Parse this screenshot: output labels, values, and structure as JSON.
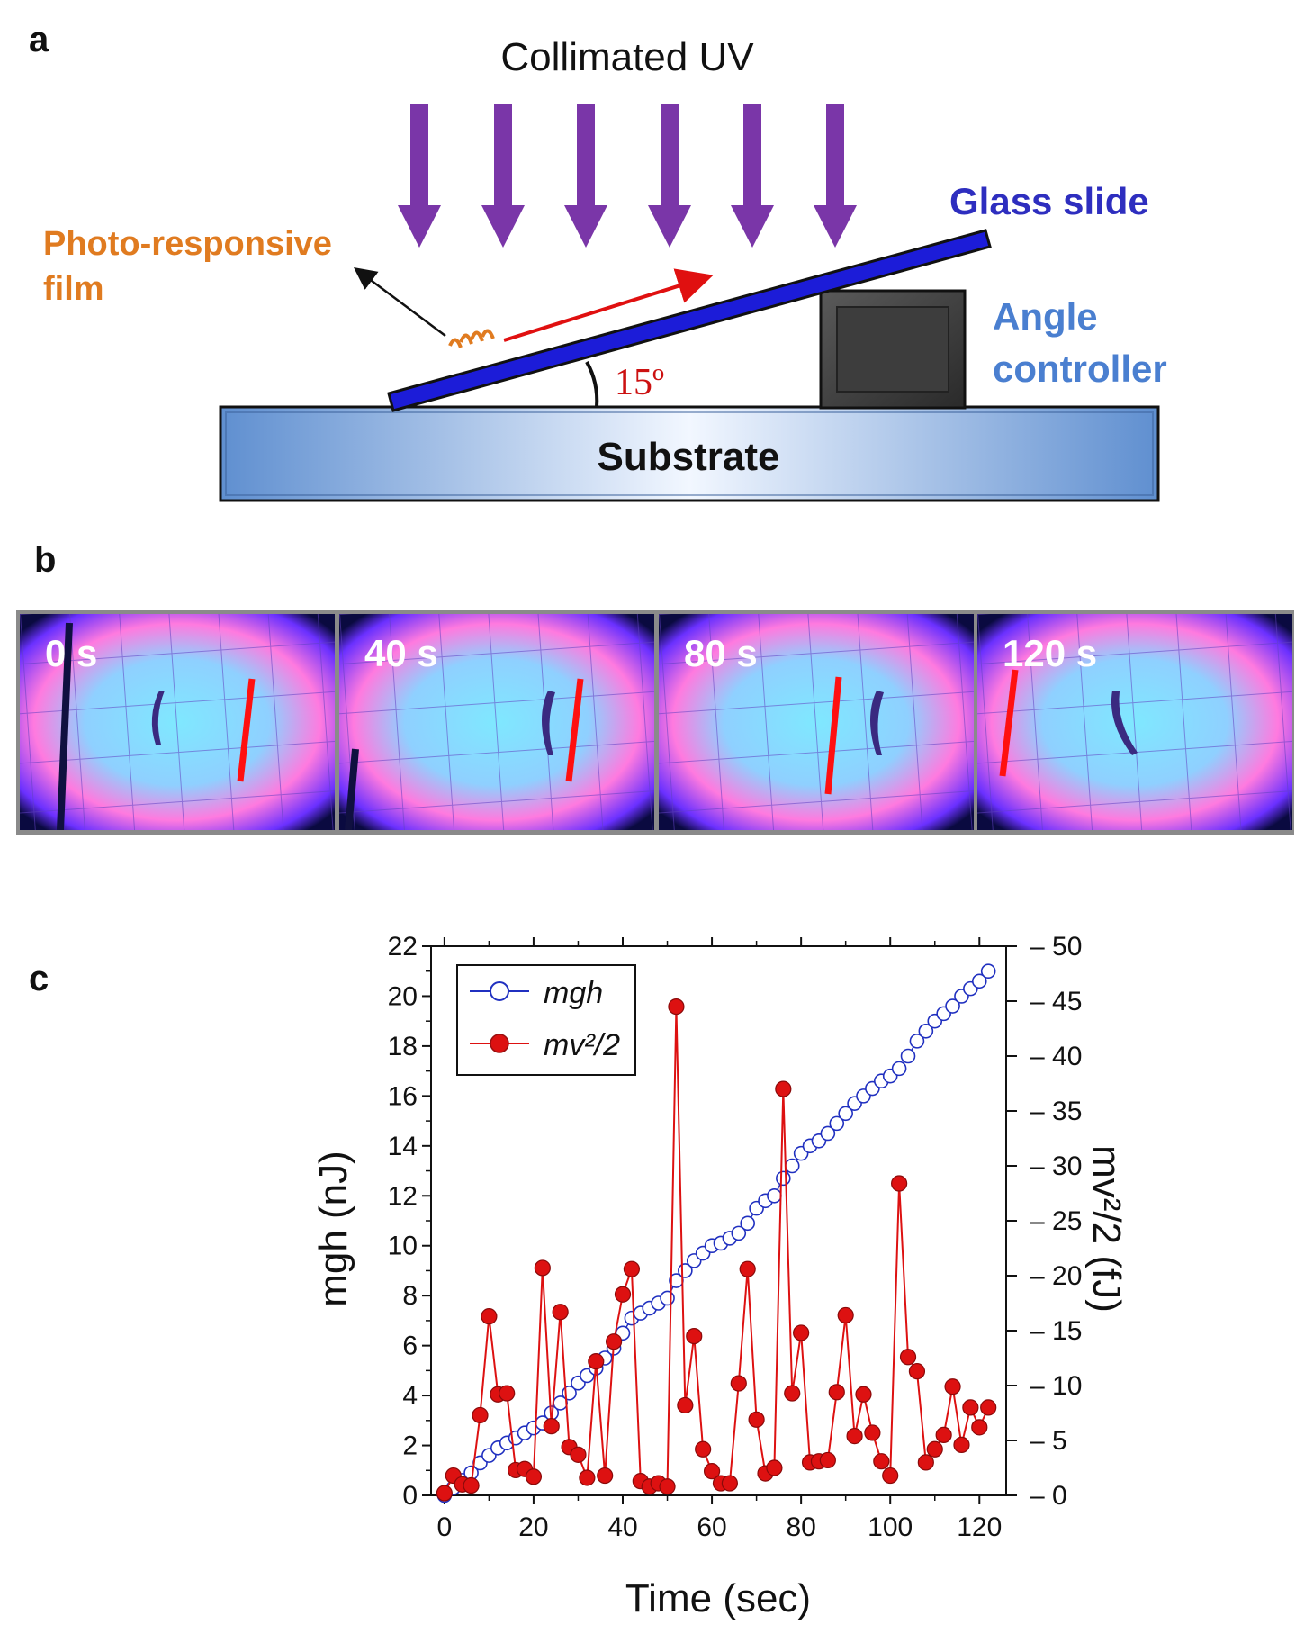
{
  "panels": {
    "a": "a",
    "b": "b",
    "c": "c"
  },
  "schematic": {
    "uv_label": "Collimated UV",
    "glass_label": "Glass slide",
    "film_label_line1": "Photo-responsive",
    "film_label_line2": "film",
    "angle_label": "15º",
    "controller_line1": "Angle",
    "controller_line2": "controller",
    "substrate_label": "Substrate",
    "colors": {
      "uv_arrow": "#7030a0",
      "glass": "#1f1fcf",
      "film_text": "#e07b20",
      "glass_text": "#2e2ebf",
      "controller_text": "#4a7fd0",
      "angle_text": "#cc1111",
      "substrate": "#6f9fd8"
    }
  },
  "frames": [
    {
      "label": "0 s"
    },
    {
      "label": "40 s"
    },
    {
      "label": "80 s"
    },
    {
      "label": "120 s"
    }
  ],
  "chart_data": {
    "type": "scatter",
    "xlabel": "Time (sec)",
    "ylabel_left": "mgh (nJ)",
    "ylabel_right": "mv²/2 (fJ)",
    "xlim": [
      -3,
      126
    ],
    "ylim_left": [
      0,
      22
    ],
    "ylim_right": [
      0,
      50
    ],
    "x_ticks": [
      0,
      20,
      40,
      60,
      80,
      100,
      120
    ],
    "y_left_ticks": [
      0,
      2,
      4,
      6,
      8,
      10,
      12,
      14,
      16,
      18,
      20,
      22
    ],
    "y_right_ticks": [
      0,
      5,
      10,
      15,
      20,
      25,
      30,
      35,
      40,
      45,
      50
    ],
    "legend_position": "top-left",
    "series": [
      {
        "name": "mgh",
        "axis": "left",
        "marker": "open-circle",
        "color": "#2030c0",
        "x": [
          0,
          2,
          4,
          6,
          8,
          10,
          12,
          14,
          16,
          18,
          20,
          22,
          24,
          26,
          28,
          30,
          32,
          34,
          36,
          38,
          40,
          42,
          44,
          46,
          48,
          50,
          52,
          54,
          56,
          58,
          60,
          62,
          64,
          66,
          68,
          70,
          72,
          74,
          76,
          78,
          80,
          82,
          84,
          86,
          88,
          90,
          92,
          94,
          96,
          98,
          100,
          102,
          104,
          106,
          108,
          110,
          112,
          114,
          116,
          118,
          120,
          122
        ],
        "y": [
          0.0,
          0.3,
          0.6,
          0.9,
          1.3,
          1.6,
          1.9,
          2.1,
          2.3,
          2.5,
          2.7,
          2.9,
          3.3,
          3.7,
          4.1,
          4.5,
          4.8,
          5.1,
          5.5,
          5.9,
          6.5,
          7.1,
          7.3,
          7.5,
          7.7,
          7.9,
          8.6,
          9.0,
          9.4,
          9.7,
          10.0,
          10.1,
          10.3,
          10.5,
          10.9,
          11.5,
          11.8,
          12.0,
          12.7,
          13.2,
          13.7,
          14.0,
          14.2,
          14.5,
          14.9,
          15.3,
          15.7,
          16.0,
          16.3,
          16.6,
          16.8,
          17.1,
          17.6,
          18.2,
          18.6,
          19.0,
          19.3,
          19.6,
          20.0,
          20.3,
          20.6,
          21.0
        ]
      },
      {
        "name": "mv²/2",
        "axis": "right",
        "marker": "filled-circle",
        "color": "#dd1111",
        "x": [
          0,
          2,
          4,
          6,
          8,
          10,
          12,
          14,
          16,
          18,
          20,
          22,
          24,
          26,
          28,
          30,
          32,
          34,
          36,
          38,
          40,
          42,
          44,
          46,
          48,
          50,
          52,
          54,
          56,
          58,
          60,
          62,
          64,
          66,
          68,
          70,
          72,
          74,
          76,
          78,
          80,
          82,
          84,
          86,
          88,
          90,
          92,
          94,
          96,
          98,
          100,
          102,
          104,
          106,
          108,
          110,
          112,
          114,
          116,
          118,
          120,
          122
        ],
        "y": [
          0.2,
          1.8,
          1.0,
          0.9,
          7.3,
          16.3,
          9.2,
          9.3,
          2.3,
          2.4,
          1.7,
          20.7,
          6.3,
          16.7,
          4.4,
          3.7,
          1.6,
          12.2,
          1.8,
          14.0,
          18.3,
          20.6,
          1.3,
          0.8,
          1.1,
          0.8,
          44.5,
          8.2,
          14.5,
          4.2,
          2.2,
          1.1,
          1.1,
          10.2,
          20.6,
          6.9,
          2.0,
          2.5,
          37.0,
          9.3,
          14.8,
          3.0,
          3.1,
          3.2,
          9.4,
          16.4,
          5.4,
          9.2,
          5.7,
          3.1,
          1.8,
          28.4,
          12.6,
          11.3,
          3.0,
          4.2,
          5.5,
          9.9,
          4.6,
          8.0,
          6.2,
          8.0
        ]
      }
    ]
  }
}
